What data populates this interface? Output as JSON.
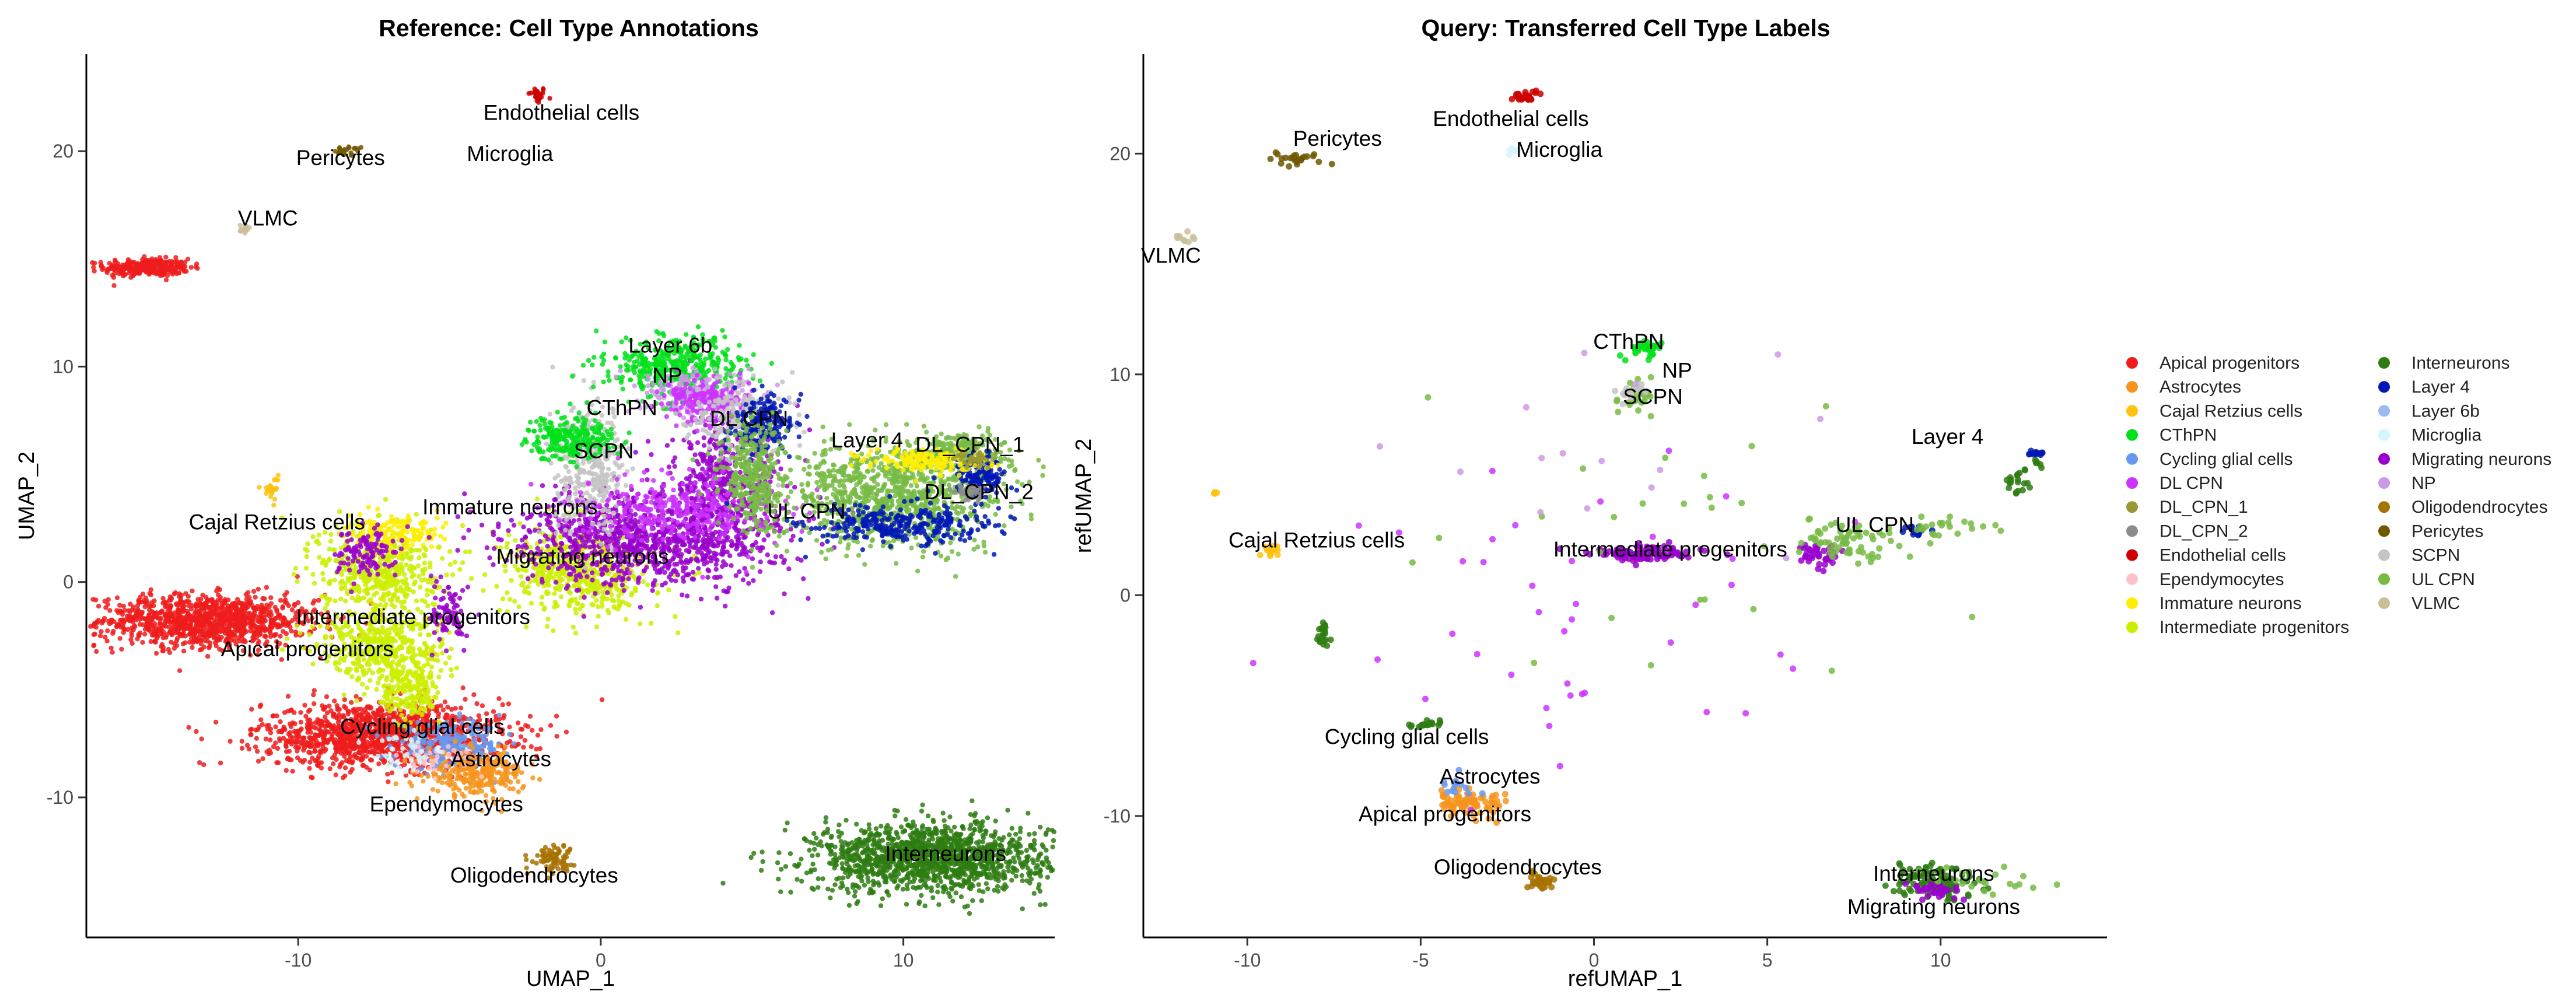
{
  "palette": {
    "Apical progenitors": "#ee1c1c",
    "Astrocytes": "#f7941d",
    "Cajal Retzius cells": "#ffc20e",
    "CThPN": "#00e01a",
    "Cycling glial cells": "#6699ee",
    "DL CPN": "#cc33ff",
    "DL_CPN_1": "#999933",
    "DL_CPN_2": "#8c8c8c",
    "Endothelial cells": "#cc0000",
    "Ependymocytes": "#ffc0cb",
    "Immature neurons": "#ffee00",
    "Intermediate progenitors": "#ccee00",
    "Interneurons": "#2e7d12",
    "Layer 4": "#0018b5",
    "Layer 6b": "#99bbee",
    "Microglia": "#d5f5ff",
    "Migrating neurons": "#9900cc",
    "NP": "#cc99e6",
    "Oligodendrocytes": "#a87200",
    "Pericytes": "#705800",
    "SCPN": "#c4c4c4",
    "UL CPN": "#77bb44",
    "VLMC": "#c9c09a"
  },
  "legend": {
    "col1": [
      "Apical progenitors",
      "Astrocytes",
      "Cajal Retzius cells",
      "CThPN",
      "Cycling glial cells",
      "DL CPN",
      "DL_CPN_1",
      "DL_CPN_2",
      "Endothelial cells",
      "Ependymocytes",
      "Immature neurons",
      "Intermediate progenitors"
    ],
    "col2": [
      "Interneurons",
      "Layer 4",
      "Layer 6b",
      "Microglia",
      "Migrating neurons",
      "NP",
      "Oligodendrocytes",
      "Pericytes",
      "SCPN",
      "UL CPN",
      "VLMC"
    ]
  },
  "chart_data": [
    {
      "type": "scatter",
      "title": "Reference: Cell Type Annotations",
      "xlabel": "UMAP_1",
      "ylabel": "UMAP_2",
      "xlim": [
        -17,
        15
      ],
      "ylim": [
        -16.5,
        24.5
      ],
      "xticks": [
        -10,
        0,
        10
      ],
      "yticks": [
        -10,
        0,
        10,
        20
      ],
      "grid": false,
      "labels": [
        {
          "text": "Endothelial cells",
          "x": -1.3,
          "y": 21.8
        },
        {
          "text": "Pericytes",
          "x": -8.6,
          "y": 19.7
        },
        {
          "text": "Microglia",
          "x": -3,
          "y": 19.9
        },
        {
          "text": "VLMC",
          "x": -11,
          "y": 16.9
        },
        {
          "text": "Layer 6b",
          "x": 2.3,
          "y": 11.0
        },
        {
          "text": "NP",
          "x": 2.2,
          "y": 9.6
        },
        {
          "text": "CThPN",
          "x": 0.7,
          "y": 8.1
        },
        {
          "text": "DL CPN",
          "x": 4.9,
          "y": 7.6
        },
        {
          "text": "SCPN",
          "x": 0.1,
          "y": 6.1
        },
        {
          "text": "Layer 4",
          "x": 8.8,
          "y": 6.6
        },
        {
          "text": "DL_CPN_1",
          "x": 12.2,
          "y": 6.4
        },
        {
          "text": "DL_CPN_2",
          "x": 12.5,
          "y": 4.2
        },
        {
          "text": "Cajal Retzius cells",
          "x": -10.7,
          "y": 2.8
        },
        {
          "text": "Immature neurons",
          "x": -3,
          "y": 3.5
        },
        {
          "text": "UL CPN",
          "x": 6.8,
          "y": 3.3
        },
        {
          "text": "Migrating neurons",
          "x": -0.6,
          "y": 1.2
        },
        {
          "text": "Intermediate progenitors",
          "x": -6.2,
          "y": -1.6
        },
        {
          "text": "Apical progenitors",
          "x": -9.7,
          "y": -3.1
        },
        {
          "text": "Cycling glial cells",
          "x": -5.9,
          "y": -6.7
        },
        {
          "text": "Astrocytes",
          "x": -3.3,
          "y": -8.2
        },
        {
          "text": "Ependymocytes",
          "x": -5.1,
          "y": -10.3
        },
        {
          "text": "Interneurons",
          "x": 11.4,
          "y": -12.6
        },
        {
          "text": "Oligodendrocytes",
          "x": -2.2,
          "y": -13.6
        }
      ],
      "clusters": [
        {
          "type": "Endothelial cells",
          "x": -2.1,
          "y": 22.6,
          "sx": 0.15,
          "sy": 0.2,
          "n": 30
        },
        {
          "type": "Pericytes",
          "x": -8.3,
          "y": 20.0,
          "sx": 0.25,
          "sy": 0.12,
          "n": 25
        },
        {
          "type": "VLMC",
          "x": -11.8,
          "y": 16.4,
          "sx": 0.15,
          "sy": 0.12,
          "n": 15
        },
        {
          "type": "Apical progenitors",
          "x": -15.0,
          "y": 14.6,
          "sx": 0.7,
          "sy": 0.2,
          "n": 320
        },
        {
          "type": "Apical progenitors",
          "x": -13.0,
          "y": -1.8,
          "sx": 1.8,
          "sy": 0.6,
          "n": 1100
        },
        {
          "type": "Apical progenitors",
          "x": -7.2,
          "y": -7.1,
          "sx": 2.0,
          "sy": 0.75,
          "n": 1300
        },
        {
          "type": "Cycling glial cells",
          "x": -5.0,
          "y": -7.6,
          "sx": 0.9,
          "sy": 0.5,
          "n": 250
        },
        {
          "type": "Astrocytes",
          "x": -4.1,
          "y": -8.9,
          "sx": 0.8,
          "sy": 0.5,
          "n": 280
        },
        {
          "type": "Ependymocytes",
          "x": -5.5,
          "y": -8.2,
          "sx": 0.6,
          "sy": 0.4,
          "n": 40
        },
        {
          "type": "Oligodendrocytes",
          "x": -1.6,
          "y": -12.8,
          "sx": 0.35,
          "sy": 0.3,
          "n": 90
        },
        {
          "type": "Interneurons",
          "x": 10.9,
          "y": -12.8,
          "sx": 1.9,
          "sy": 0.8,
          "n": 1400
        },
        {
          "type": "Cajal Retzius cells",
          "x": -10.9,
          "y": 4.3,
          "sx": 0.12,
          "sy": 0.3,
          "n": 25
        },
        {
          "type": "Intermediate progenitors",
          "x": -7.3,
          "y": 0.6,
          "sx": 1.0,
          "sy": 1.1,
          "n": 500
        },
        {
          "type": "Intermediate progenitors",
          "x": -7.3,
          "y": -3.0,
          "sx": 1.1,
          "sy": 0.8,
          "n": 400
        },
        {
          "type": "Intermediate progenitors",
          "x": -6.3,
          "y": -5.0,
          "sx": 0.5,
          "sy": 0.8,
          "n": 200
        },
        {
          "type": "Intermediate progenitors",
          "x": -0.7,
          "y": 0.5,
          "sx": 1.2,
          "sy": 1.0,
          "n": 550
        },
        {
          "type": "Immature neurons",
          "x": -6.7,
          "y": 2.2,
          "sx": 0.8,
          "sy": 0.4,
          "n": 150
        },
        {
          "type": "Migrating neurons",
          "x": -7.8,
          "y": 1.4,
          "sx": 0.5,
          "sy": 0.6,
          "n": 120
        },
        {
          "type": "Migrating neurons",
          "x": -5.0,
          "y": -1.6,
          "sx": 0.3,
          "sy": 0.7,
          "n": 80
        },
        {
          "type": "Migrating neurons",
          "x": 1.5,
          "y": 2.0,
          "sx": 2.2,
          "sy": 1.1,
          "n": 1000
        },
        {
          "type": "Migrating neurons",
          "x": 4.0,
          "y": 4.5,
          "sx": 0.9,
          "sy": 1.5,
          "n": 450
        },
        {
          "type": "SCPN",
          "x": -0.3,
          "y": 5.2,
          "sx": 0.6,
          "sy": 1.5,
          "n": 350
        },
        {
          "type": "CThPN",
          "x": -1.0,
          "y": 6.7,
          "sx": 0.7,
          "sy": 0.5,
          "n": 250
        },
        {
          "type": "CThPN",
          "x": 2.5,
          "y": 10.0,
          "sx": 1.1,
          "sy": 0.7,
          "n": 420
        },
        {
          "type": "NP",
          "x": 3.2,
          "y": 8.8,
          "sx": 0.9,
          "sy": 0.5,
          "n": 200
        },
        {
          "type": "DL CPN",
          "x": 3.6,
          "y": 8.4,
          "sx": 0.7,
          "sy": 0.5,
          "n": 200
        },
        {
          "type": "DL CPN",
          "x": 2.7,
          "y": 3.4,
          "sx": 1.6,
          "sy": 0.8,
          "n": 300
        },
        {
          "type": "SCPN",
          "x": 4.6,
          "y": 7.5,
          "sx": 0.8,
          "sy": 1.0,
          "n": 220
        },
        {
          "type": "Layer 4",
          "x": 5.4,
          "y": 7.3,
          "sx": 0.5,
          "sy": 0.6,
          "n": 200
        },
        {
          "type": "UL CPN",
          "x": 5.0,
          "y": 5.0,
          "sx": 0.5,
          "sy": 1.3,
          "n": 300
        },
        {
          "type": "UL CPN",
          "x": 9.6,
          "y": 4.0,
          "sx": 1.8,
          "sy": 1.2,
          "n": 1000
        },
        {
          "type": "UL CPN",
          "x": 11.9,
          "y": 6.1,
          "sx": 0.8,
          "sy": 0.4,
          "n": 180
        },
        {
          "type": "Layer 4",
          "x": 9.7,
          "y": 2.6,
          "sx": 1.6,
          "sy": 0.5,
          "n": 300
        },
        {
          "type": "Layer 4",
          "x": 12.5,
          "y": 5.0,
          "sx": 0.4,
          "sy": 0.5,
          "n": 150
        },
        {
          "type": "Immature neurons",
          "x": 10.7,
          "y": 5.6,
          "sx": 1.0,
          "sy": 0.3,
          "n": 150
        },
        {
          "type": "DL_CPN_1",
          "x": 12.4,
          "y": 5.7,
          "sx": 0.3,
          "sy": 0.2,
          "n": 40
        },
        {
          "type": "DL_CPN_2",
          "x": 12.3,
          "y": 4.1,
          "sx": 0.3,
          "sy": 0.2,
          "n": 40
        },
        {
          "type": "Microglia",
          "x": -6.4,
          "y": -7.9,
          "sx": 0.6,
          "sy": 0.5,
          "n": 40
        }
      ]
    },
    {
      "type": "scatter",
      "title": "Query: Transferred Cell Type Labels",
      "xlabel": "refUMAP_1",
      "ylabel": "refUMAP_2",
      "xlim": [
        -13,
        14.8
      ],
      "ylim": [
        -15.5,
        24.5
      ],
      "xticks": [
        -10,
        -5,
        0,
        5,
        10
      ],
      "yticks": [
        -10,
        0,
        10,
        20
      ],
      "grid": false,
      "labels": [
        {
          "text": "Endothelial cells",
          "x": -2.4,
          "y": 21.6
        },
        {
          "text": "Pericytes",
          "x": -7.4,
          "y": 20.7
        },
        {
          "text": "Microglia",
          "x": -1.0,
          "y": 20.2
        },
        {
          "text": "VLMC",
          "x": -12.2,
          "y": 15.4
        },
        {
          "text": "CThPN",
          "x": 1.0,
          "y": 11.5
        },
        {
          "text": "NP",
          "x": 2.4,
          "y": 10.2
        },
        {
          "text": "SCPN",
          "x": 1.7,
          "y": 9.0
        },
        {
          "text": "Layer 4",
          "x": 10.2,
          "y": 7.2
        },
        {
          "text": "Cajal Retzius cells",
          "x": -8.0,
          "y": 2.5
        },
        {
          "text": "UL CPN",
          "x": 8.1,
          "y": 3.2
        },
        {
          "text": "Intermediate progenitors",
          "x": 2.2,
          "y": 2.1
        },
        {
          "text": "Cycling glial cells",
          "x": -5.4,
          "y": -6.4
        },
        {
          "text": "Astrocytes",
          "x": -3.0,
          "y": -8.2
        },
        {
          "text": "Apical progenitors",
          "x": -4.3,
          "y": -9.9
        },
        {
          "text": "Oligodendrocytes",
          "x": -2.2,
          "y": -12.3
        },
        {
          "text": "Interneurons",
          "x": 9.8,
          "y": -12.6
        },
        {
          "text": "Migrating neurons",
          "x": 9.8,
          "y": -14.1
        }
      ],
      "clusters": [
        {
          "type": "Endothelial cells",
          "x": -2.0,
          "y": 22.6,
          "sx": 0.2,
          "sy": 0.15,
          "n": 25
        },
        {
          "type": "Pericytes",
          "x": -8.5,
          "y": 19.8,
          "sx": 0.5,
          "sy": 0.2,
          "n": 25
        },
        {
          "type": "Microglia",
          "x": -2.3,
          "y": 20.2,
          "sx": 0.1,
          "sy": 0.1,
          "n": 6
        },
        {
          "type": "VLMC",
          "x": -11.8,
          "y": 16.2,
          "sx": 0.15,
          "sy": 0.1,
          "n": 10
        },
        {
          "type": "CThPN",
          "x": 1.5,
          "y": 11.1,
          "sx": 0.3,
          "sy": 0.2,
          "n": 35
        },
        {
          "type": "UL CPN",
          "x": 1.2,
          "y": 8.9,
          "sx": 0.3,
          "sy": 0.3,
          "n": 25
        },
        {
          "type": "SCPN",
          "x": 1.0,
          "y": 9.2,
          "sx": 0.2,
          "sy": 0.2,
          "n": 15
        },
        {
          "type": "Layer 4",
          "x": 12.8,
          "y": 6.4,
          "sx": 0.1,
          "sy": 0.1,
          "n": 12
        },
        {
          "type": "Interneurons",
          "x": 12.2,
          "y": 5.2,
          "sx": 0.2,
          "sy": 0.3,
          "n": 20
        },
        {
          "type": "Interneurons",
          "x": 12.8,
          "y": 6.0,
          "sx": 0.1,
          "sy": 0.1,
          "n": 6
        },
        {
          "type": "Cajal Retzius cells",
          "x": -9.3,
          "y": 2.0,
          "sx": 0.15,
          "sy": 0.15,
          "n": 15
        },
        {
          "type": "Cajal Retzius cells",
          "x": -10.9,
          "y": 4.6,
          "sx": 0.05,
          "sy": 0.05,
          "n": 4
        },
        {
          "type": "Migrating neurons",
          "x": 1.5,
          "y": 1.9,
          "sx": 0.7,
          "sy": 0.2,
          "n": 110
        },
        {
          "type": "Migrating neurons",
          "x": 6.5,
          "y": 1.8,
          "sx": 0.3,
          "sy": 0.3,
          "n": 40
        },
        {
          "type": "UL CPN",
          "x": 7.2,
          "y": 2.5,
          "sx": 0.8,
          "sy": 0.5,
          "n": 70
        },
        {
          "type": "Layer 4",
          "x": 9.4,
          "y": 2.9,
          "sx": 0.2,
          "sy": 0.1,
          "n": 15
        },
        {
          "type": "UL CPN",
          "x": 10.0,
          "y": 3.0,
          "sx": 0.8,
          "sy": 0.3,
          "n": 25
        },
        {
          "type": "Interneurons",
          "x": -7.8,
          "y": -1.8,
          "sx": 0.15,
          "sy": 0.4,
          "n": 20
        },
        {
          "type": "Interneurons",
          "x": -4.9,
          "y": -5.8,
          "sx": 0.3,
          "sy": 0.1,
          "n": 20
        },
        {
          "type": "Astrocytes",
          "x": -3.6,
          "y": -9.4,
          "sx": 0.6,
          "sy": 0.3,
          "n": 80
        },
        {
          "type": "Cycling glial cells",
          "x": -3.9,
          "y": -8.6,
          "sx": 0.3,
          "sy": 0.2,
          "n": 15
        },
        {
          "type": "Oligodendrocytes",
          "x": -1.5,
          "y": -13.0,
          "sx": 0.2,
          "sy": 0.2,
          "n": 35
        },
        {
          "type": "Interneurons",
          "x": 9.8,
          "y": -13.0,
          "sx": 0.6,
          "sy": 0.4,
          "n": 110
        },
        {
          "type": "Migrating neurons",
          "x": 9.8,
          "y": -13.4,
          "sx": 0.4,
          "sy": 0.2,
          "n": 30
        },
        {
          "type": "UL CPN",
          "x": 11.3,
          "y": -13.0,
          "sx": 0.8,
          "sy": 0.3,
          "n": 20
        },
        {
          "type": "DL CPN",
          "x": 0.5,
          "y": -2.0,
          "sx": 4.5,
          "sy": 4.0,
          "n": 40
        },
        {
          "type": "UL CPN",
          "x": 2.0,
          "y": 3.0,
          "sx": 4.0,
          "sy": 3.0,
          "n": 25
        },
        {
          "type": "NP",
          "x": 1.5,
          "y": 6.0,
          "sx": 3.5,
          "sy": 3.0,
          "n": 15
        }
      ]
    }
  ]
}
